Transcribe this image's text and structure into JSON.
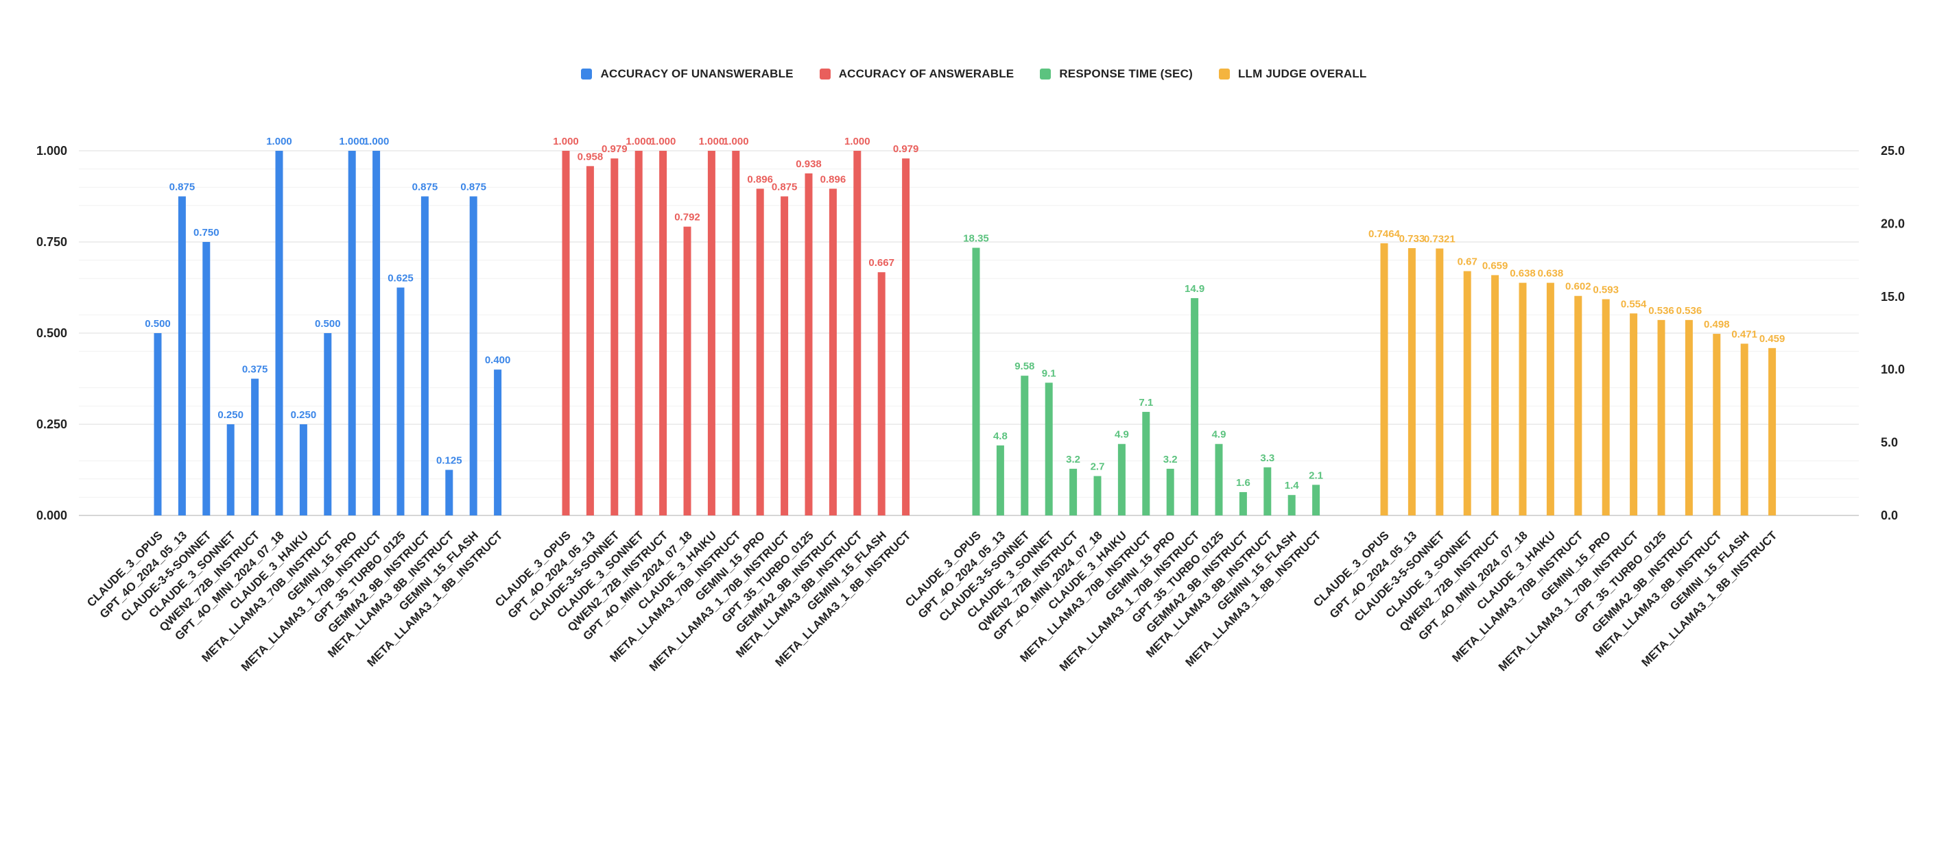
{
  "chart_data": {
    "type": "bar",
    "legend_position": "top-center",
    "grid": true,
    "series": [
      {
        "name": "ACCURACY OF UNANSWERABLE",
        "axis": "left",
        "color": "#3b86e8",
        "value_format": "fixed3",
        "categories": [
          "CLAUDE_3_OPUS",
          "GPT_4O_2024_05_13",
          "CLAUDE-3-5-SONNET",
          "CLAUDE_3_SONNET",
          "QWEN2_72B_INSTRUCT",
          "GPT_4O_MINI_2024_07_18",
          "CLAUDE_3_HAIKU",
          "META_LLAMA3_70B_INSTRUCT",
          "GEMINI_15_PRO",
          "META_LLAMA3_1_70B_INSTRUCT",
          "GPT_35_TURBO_0125",
          "GEMMA2_9B_INSTRUCT",
          "META_LLAMA3_8B_INSTRUCT",
          "GEMINI_15_FLASH",
          "META_LLAMA3_1_8B_INSTRUCT"
        ],
        "values": [
          0.5,
          0.875,
          0.75,
          0.25,
          0.375,
          1.0,
          0.25,
          0.5,
          1.0,
          1.0,
          0.625,
          0.875,
          0.125,
          0.875,
          0.4
        ]
      },
      {
        "name": "ACCURACY OF ANSWERABLE",
        "axis": "left",
        "color": "#e95f5c",
        "value_format": "fixed3",
        "categories": [
          "CLAUDE_3_OPUS",
          "GPT_4O_2024_05_13",
          "CLAUDE-3-5-SONNET",
          "CLAUDE_3_SONNET",
          "QWEN2_72B_INSTRUCT",
          "GPT_4O_MINI_2024_07_18",
          "CLAUDE_3_HAIKU",
          "META_LLAMA3_70B_INSTRUCT",
          "GEMINI_15_PRO",
          "META_LLAMA3_1_70B_INSTRUCT",
          "GPT_35_TURBO_0125",
          "GEMMA2_9B_INSTRUCT",
          "META_LLAMA3_8B_INSTRUCT",
          "GEMINI_15_FLASH",
          "META_LLAMA3_1_8B_INSTRUCT"
        ],
        "values": [
          1.0,
          0.958,
          0.979,
          1.0,
          1.0,
          0.792,
          1.0,
          1.0,
          0.896,
          0.875,
          0.938,
          0.896,
          1.0,
          0.667,
          0.979
        ]
      },
      {
        "name": "RESPONSE TIME (SEC)",
        "axis": "right",
        "color": "#5cc37f",
        "value_format": "raw",
        "categories": [
          "CLAUDE_3_OPUS",
          "GPT_4O_2024_05_13",
          "CLAUDE-3-5-SONNET",
          "CLAUDE_3_SONNET",
          "QWEN2_72B_INSTRUCT",
          "GPT_4O_MINI_2024_07_18",
          "CLAUDE_3_HAIKU",
          "META_LLAMA3_70B_INSTRUCT",
          "GEMINI_15_PRO",
          "META_LLAMA3_1_70B_INSTRUCT",
          "GPT_35_TURBO_0125",
          "GEMMA2_9B_INSTRUCT",
          "META_LLAMA3_8B_INSTRUCT",
          "GEMINI_15_FLASH",
          "META_LLAMA3_1_8B_INSTRUCT"
        ],
        "values": [
          18.35,
          4.8,
          9.58,
          9.1,
          3.2,
          2.7,
          4.9,
          7.1,
          3.2,
          14.9,
          4.9,
          1.6,
          3.3,
          1.4,
          2.1
        ]
      },
      {
        "name": "LLM JUDGE OVERALL",
        "axis": "left",
        "color": "#f4b43f",
        "value_format": "raw",
        "categories": [
          "CLAUDE_3_OPUS",
          "GPT_4O_2024_05_13",
          "CLAUDE-3-5-SONNET",
          "CLAUDE_3_SONNET",
          "QWEN2_72B_INSTRUCT",
          "GPT_4O_MINI_2024_07_18",
          "CLAUDE_3_HAIKU",
          "META_LLAMA3_70B_INSTRUCT",
          "GEMINI_15_PRO",
          "META_LLAMA3_1_70B_INSTRUCT",
          "GPT_35_TURBO_0125",
          "GEMMA2_9B_INSTRUCT",
          "META_LLAMA3_8B_INSTRUCT",
          "GEMINI_15_FLASH",
          "META_LLAMA3_1_8B_INSTRUCT"
        ],
        "values": [
          0.7464,
          0.733,
          0.7321,
          0.67,
          0.659,
          0.638,
          0.638,
          0.602,
          0.593,
          0.554,
          0.536,
          0.536,
          0.498,
          0.471,
          0.459
        ]
      }
    ],
    "y_left": {
      "min": 0,
      "max": 1,
      "ticks": [
        "0.000",
        "0.250",
        "0.500",
        "0.750",
        "1.000"
      ]
    },
    "y_right": {
      "min": 0,
      "max": 25,
      "ticks": [
        "0.0",
        "5.0",
        "10.0",
        "15.0",
        "20.0",
        "25.0"
      ]
    }
  }
}
